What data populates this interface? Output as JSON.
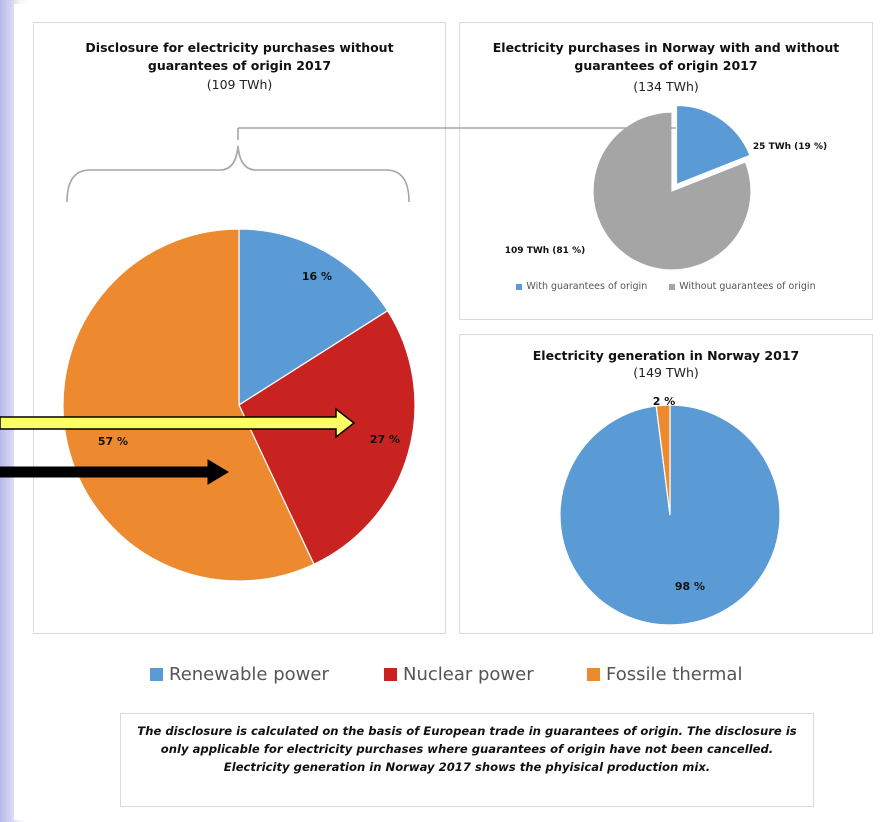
{
  "colors": {
    "renewable": "#5b9bd5",
    "nuclear": "#c92321",
    "fossil": "#ed8a30",
    "with_go": "#5b9bd5",
    "without_go": "#a5a5a5",
    "bracket": "#a6a6a6",
    "arrow_yellow": "#ffff66",
    "arrow_black": "#000000"
  },
  "legend": {
    "items": [
      {
        "label": "Renewable power",
        "color": "#5b9bd5"
      },
      {
        "label": "Nuclear power",
        "color": "#c92321"
      },
      {
        "label": "Fossile thermal",
        "color": "#ed8a30"
      }
    ]
  },
  "note": {
    "text": "The disclosure is calculated on the basis of European trade in guarantees of origin. The disclosure is only applicable for electricity purchases where guarantees of origin have not been cancelled. Electricity generation in Norway 2017 shows the phyisical production mix."
  },
  "chart_data": [
    {
      "type": "pie",
      "title": "Disclosure for electricity purchases without guarantees of origin 2017",
      "subtitle": "(109 TWh)",
      "slices": [
        {
          "name": "Renewable power",
          "value": 16,
          "label": "16 %",
          "color": "#5b9bd5"
        },
        {
          "name": "Nuclear power",
          "value": 27,
          "label": "27 %",
          "color": "#c92321"
        },
        {
          "name": "Fossile thermal",
          "value": 57,
          "label": "57 %",
          "color": "#ed8a30"
        }
      ]
    },
    {
      "type": "pie",
      "title": "Electricity purchases in Norway with and without guarantees of origin 2017",
      "subtitle": "(134 TWh)",
      "slices": [
        {
          "name": "With guarantees of origin",
          "value": 19,
          "label": "25 TWh (19 %)",
          "color": "#5b9bd5"
        },
        {
          "name": "Without guarantees of origin",
          "value": 81,
          "label": "109 TWh (81 %)",
          "color": "#a5a5a5"
        }
      ],
      "legend": [
        "With guarantees of origin",
        "Without guarantees of origin"
      ]
    },
    {
      "type": "pie",
      "title": "Electricity generation in Norway 2017",
      "subtitle": "(149 TWh)",
      "slices": [
        {
          "name": "Renewable power",
          "value": 98,
          "label": "98 %",
          "color": "#5b9bd5"
        },
        {
          "name": "Fossile thermal",
          "value": 2,
          "label": "2 %",
          "color": "#ed8a30"
        }
      ]
    }
  ]
}
